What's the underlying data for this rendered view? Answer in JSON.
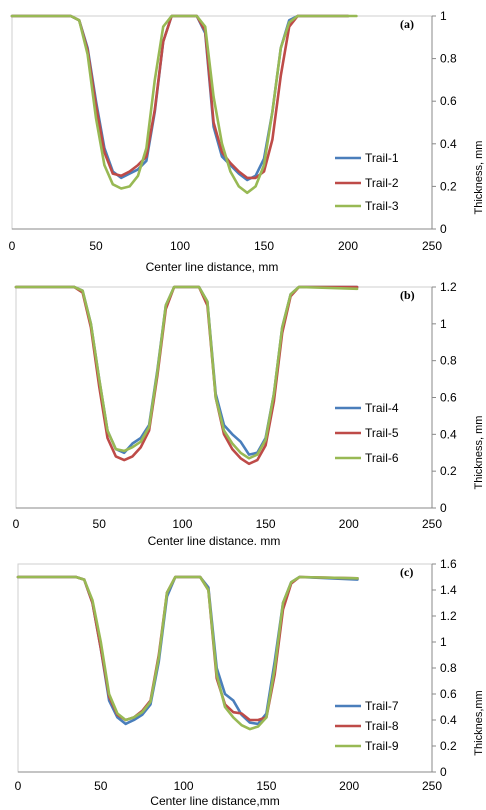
{
  "chart_data": [
    {
      "type": "line",
      "panel_label": "(a)",
      "xlabel": "Center line distance, mm",
      "ylabel": "Thickness, mm",
      "xlim": [
        0,
        250
      ],
      "ylim": [
        0,
        1
      ],
      "xticks": [
        "0",
        "50",
        "100",
        "150",
        "200",
        "250"
      ],
      "yticks": [
        "0",
        "0.2",
        "0.4",
        "0.6",
        "0.8",
        "1"
      ],
      "legend_position": "bottom-right",
      "series": [
        {
          "name": "Trail-1",
          "color": "#4a7ebb",
          "x": [
            0,
            35,
            40,
            45,
            50,
            55,
            60,
            65,
            70,
            75,
            80,
            85,
            90,
            95,
            100,
            110,
            115,
            120,
            125,
            130,
            135,
            140,
            145,
            150,
            155,
            160,
            165,
            170,
            200
          ],
          "y": [
            1,
            1,
            0.98,
            0.85,
            0.6,
            0.38,
            0.27,
            0.24,
            0.26,
            0.28,
            0.32,
            0.55,
            0.88,
            1,
            1,
            1,
            0.92,
            0.48,
            0.34,
            0.3,
            0.26,
            0.23,
            0.25,
            0.33,
            0.55,
            0.85,
            0.98,
            1,
            1
          ]
        },
        {
          "name": "Trail-2",
          "color": "#be4b48",
          "x": [
            0,
            35,
            40,
            45,
            50,
            55,
            60,
            65,
            70,
            75,
            80,
            85,
            90,
            95,
            100,
            110,
            115,
            120,
            125,
            130,
            135,
            140,
            145,
            150,
            155,
            160,
            165,
            170,
            200
          ],
          "y": [
            1,
            1,
            0.98,
            0.84,
            0.58,
            0.36,
            0.26,
            0.25,
            0.27,
            0.3,
            0.34,
            0.56,
            0.88,
            1,
            1,
            1,
            0.93,
            0.5,
            0.36,
            0.31,
            0.27,
            0.24,
            0.24,
            0.27,
            0.42,
            0.72,
            0.95,
            1,
            1
          ]
        },
        {
          "name": "Trail-3",
          "color": "#98b954",
          "x": [
            0,
            35,
            40,
            45,
            50,
            55,
            60,
            65,
            70,
            75,
            80,
            85,
            90,
            95,
            100,
            110,
            115,
            120,
            125,
            130,
            135,
            140,
            145,
            150,
            155,
            160,
            165,
            170,
            205
          ],
          "y": [
            1,
            1,
            0.98,
            0.82,
            0.52,
            0.3,
            0.21,
            0.19,
            0.2,
            0.25,
            0.38,
            0.7,
            0.95,
            1,
            1,
            1,
            0.95,
            0.62,
            0.4,
            0.27,
            0.2,
            0.17,
            0.2,
            0.3,
            0.55,
            0.85,
            0.97,
            1,
            1
          ]
        }
      ]
    },
    {
      "type": "line",
      "panel_label": "(b)",
      "xlabel": "Center line distance. mm",
      "ylabel": "Thickness, mm",
      "xlim": [
        0,
        250
      ],
      "ylim": [
        0,
        1.2
      ],
      "xticks": [
        "0",
        "50",
        "100",
        "150",
        "200",
        "250"
      ],
      "yticks": [
        "0",
        "0.2",
        "0.4",
        "0.6",
        "0.8",
        "1",
        "1.2"
      ],
      "legend_position": "bottom-right",
      "series": [
        {
          "name": "Trail-4",
          "color": "#4a7ebb",
          "x": [
            0,
            35,
            40,
            45,
            50,
            55,
            60,
            65,
            70,
            75,
            80,
            85,
            90,
            95,
            100,
            110,
            115,
            120,
            125,
            130,
            135,
            140,
            145,
            150,
            155,
            160,
            165,
            170,
            205
          ],
          "y": [
            1.2,
            1.2,
            1.18,
            1.0,
            0.7,
            0.42,
            0.32,
            0.3,
            0.35,
            0.38,
            0.45,
            0.75,
            1.1,
            1.2,
            1.2,
            1.2,
            1.12,
            0.62,
            0.45,
            0.4,
            0.36,
            0.29,
            0.3,
            0.38,
            0.62,
            0.98,
            1.16,
            1.2,
            1.2
          ]
        },
        {
          "name": "Trail-5",
          "color": "#be4b48",
          "x": [
            0,
            35,
            40,
            45,
            50,
            55,
            60,
            65,
            70,
            75,
            80,
            85,
            90,
            95,
            100,
            110,
            115,
            120,
            125,
            130,
            135,
            140,
            145,
            150,
            155,
            160,
            165,
            170,
            205
          ],
          "y": [
            1.2,
            1.2,
            1.17,
            0.98,
            0.66,
            0.38,
            0.28,
            0.26,
            0.28,
            0.33,
            0.42,
            0.72,
            1.08,
            1.2,
            1.2,
            1.2,
            1.1,
            0.6,
            0.4,
            0.32,
            0.27,
            0.24,
            0.26,
            0.34,
            0.58,
            0.95,
            1.15,
            1.2,
            1.2
          ]
        },
        {
          "name": "Trail-6",
          "color": "#98b954",
          "x": [
            0,
            35,
            40,
            45,
            50,
            55,
            60,
            65,
            70,
            75,
            80,
            85,
            90,
            95,
            100,
            110,
            115,
            120,
            125,
            130,
            135,
            140,
            145,
            150,
            155,
            160,
            165,
            170,
            205
          ],
          "y": [
            1.2,
            1.2,
            1.18,
            1.0,
            0.7,
            0.42,
            0.32,
            0.31,
            0.33,
            0.36,
            0.44,
            0.74,
            1.1,
            1.2,
            1.2,
            1.2,
            1.12,
            0.6,
            0.42,
            0.35,
            0.3,
            0.27,
            0.29,
            0.37,
            0.62,
            0.98,
            1.16,
            1.2,
            1.19
          ]
        }
      ]
    },
    {
      "type": "line",
      "panel_label": "(c)",
      "xlabel": "Center line distance,mm",
      "ylabel": "Thicknes,mm",
      "xlim": [
        0,
        250
      ],
      "ylim": [
        0,
        1.6
      ],
      "xticks": [
        "0",
        "50",
        "100",
        "150",
        "200",
        "250"
      ],
      "yticks": [
        "0",
        "0.2",
        "0.4",
        "0.6",
        "0.8",
        "1",
        "1.2",
        "1.4",
        "1.6"
      ],
      "legend_position": "bottom-right",
      "series": [
        {
          "name": "Trail-7",
          "color": "#4a7ebb",
          "x": [
            0,
            35,
            40,
            45,
            50,
            55,
            60,
            65,
            70,
            75,
            80,
            85,
            90,
            95,
            110,
            115,
            120,
            125,
            130,
            135,
            140,
            145,
            150,
            155,
            160,
            165,
            170,
            205
          ],
          "y": [
            1.5,
            1.5,
            1.48,
            1.3,
            0.95,
            0.55,
            0.42,
            0.37,
            0.4,
            0.44,
            0.52,
            0.85,
            1.35,
            1.5,
            1.5,
            1.42,
            0.8,
            0.6,
            0.55,
            0.44,
            0.38,
            0.37,
            0.45,
            0.85,
            1.3,
            1.46,
            1.5,
            1.48
          ]
        },
        {
          "name": "Trail-8",
          "color": "#be4b48",
          "x": [
            0,
            35,
            40,
            45,
            50,
            55,
            60,
            65,
            70,
            75,
            80,
            85,
            90,
            95,
            110,
            115,
            120,
            125,
            130,
            135,
            140,
            145,
            150,
            155,
            160,
            165,
            170,
            205
          ],
          "y": [
            1.5,
            1.5,
            1.48,
            1.3,
            0.95,
            0.58,
            0.44,
            0.4,
            0.42,
            0.47,
            0.55,
            0.9,
            1.38,
            1.5,
            1.5,
            1.4,
            0.72,
            0.52,
            0.46,
            0.45,
            0.4,
            0.4,
            0.42,
            0.75,
            1.25,
            1.45,
            1.5,
            1.49
          ]
        },
        {
          "name": "Trail-9",
          "color": "#98b954",
          "x": [
            0,
            35,
            40,
            45,
            50,
            55,
            60,
            65,
            70,
            75,
            80,
            85,
            90,
            95,
            110,
            115,
            120,
            125,
            130,
            135,
            140,
            145,
            150,
            155,
            160,
            165,
            170,
            205
          ],
          "y": [
            1.5,
            1.5,
            1.48,
            1.32,
            1.0,
            0.6,
            0.45,
            0.4,
            0.42,
            0.46,
            0.54,
            0.88,
            1.38,
            1.5,
            1.5,
            1.4,
            0.75,
            0.5,
            0.42,
            0.36,
            0.33,
            0.35,
            0.42,
            0.8,
            1.3,
            1.46,
            1.5,
            1.49
          ]
        }
      ]
    }
  ]
}
